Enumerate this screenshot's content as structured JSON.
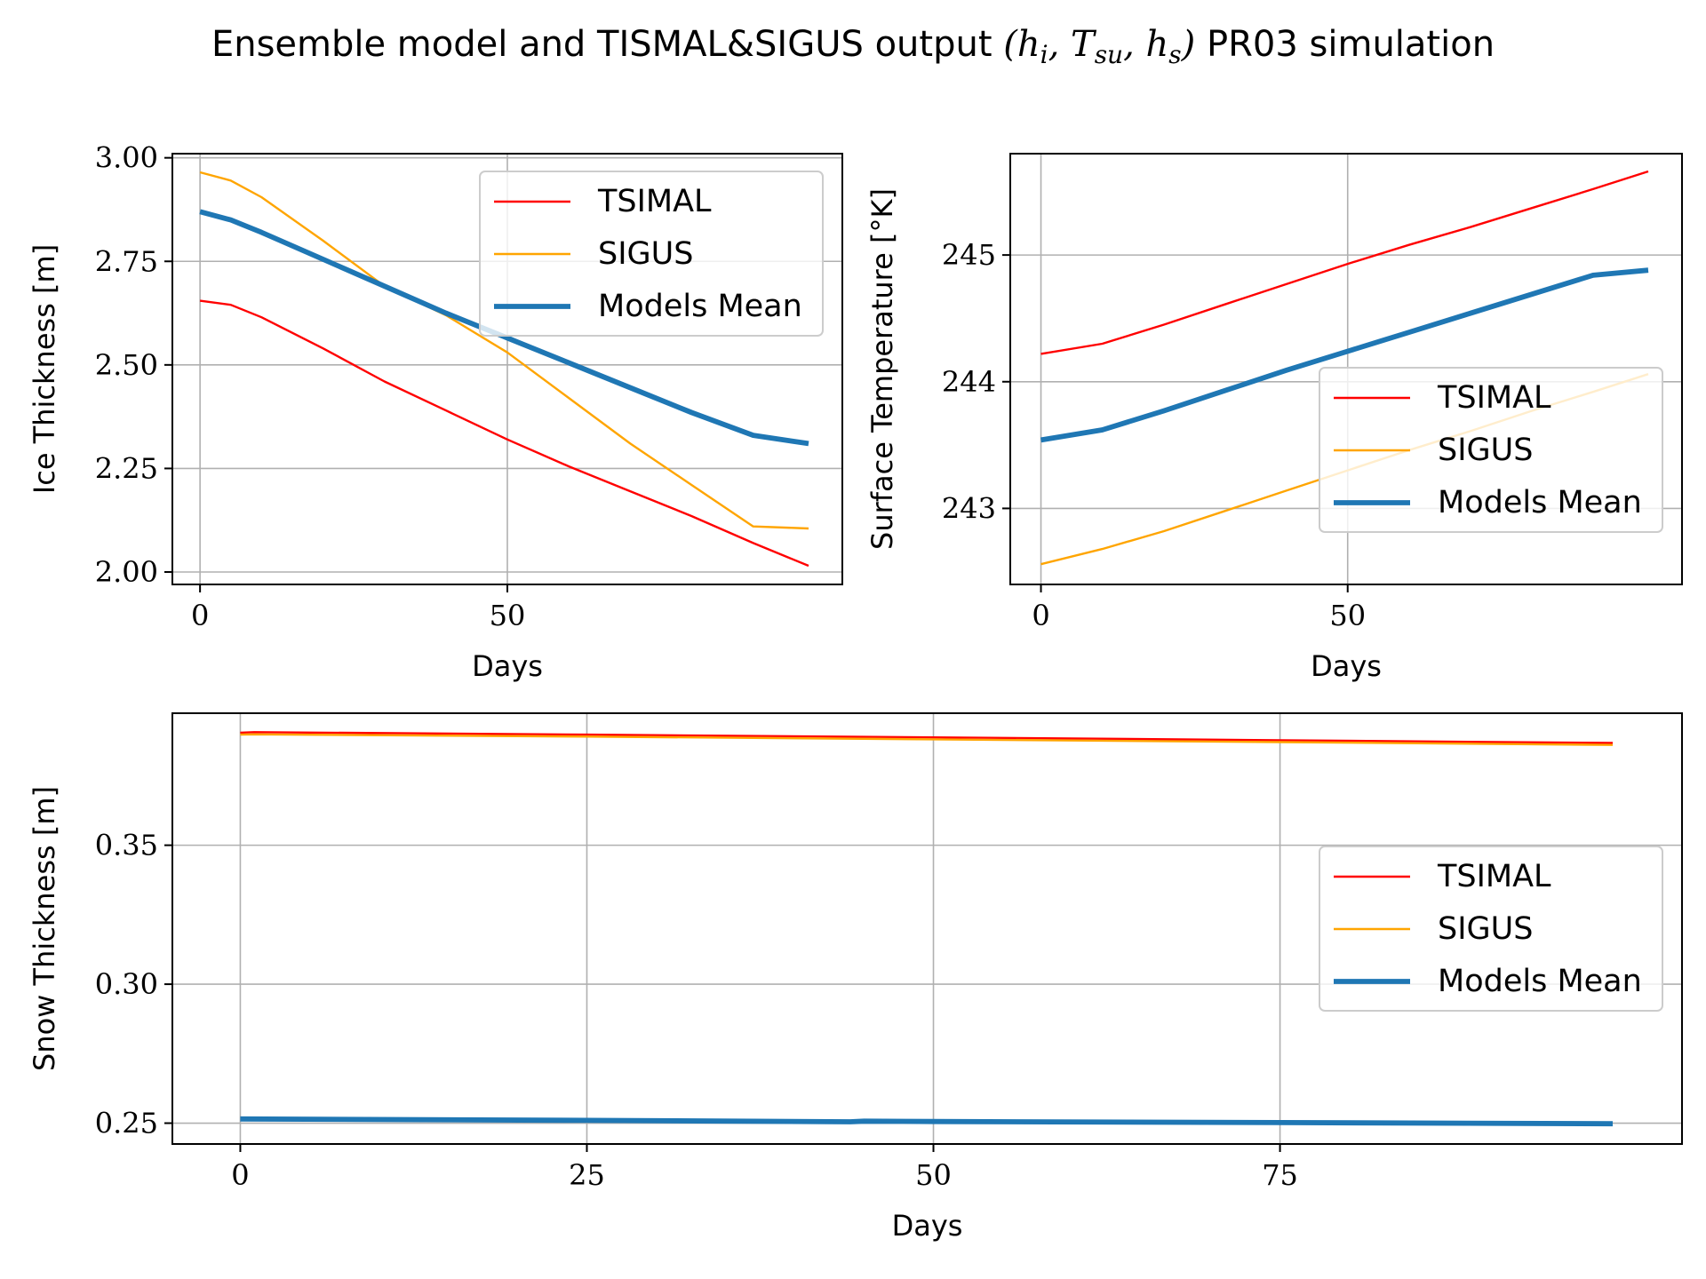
{
  "figure": {
    "title_prefix": "Ensemble model and TISMAL&SIGUS output ",
    "title_math": "(h",
    "title_suffix": " PR03 simulation"
  },
  "colors": {
    "tsimal": "#ff0000",
    "sigus": "#ffa500",
    "mean": "#1f77b4",
    "grid": "#b0b0b0",
    "axes": "#000000"
  },
  "chart_data": [
    {
      "type": "line",
      "xlabel": "Days",
      "ylabel": "Ice Thickness [m]",
      "xlim": [
        -4.5,
        104.5
      ],
      "ylim": [
        1.97,
        3.01
      ],
      "xticks": [
        0,
        50
      ],
      "yticks": [
        2.0,
        2.25,
        2.5,
        2.75,
        3.0
      ],
      "ytick_labels": [
        "2.00",
        "2.25",
        "2.50",
        "2.75",
        "3.00"
      ],
      "grid": true,
      "legend_position": "upper right",
      "series": [
        {
          "name": "TSIMAL",
          "key": "tsimal",
          "x": [
            0,
            5,
            10,
            20,
            30,
            40,
            50,
            60,
            70,
            80,
            90,
            99
          ],
          "y": [
            2.655,
            2.645,
            2.615,
            2.54,
            2.46,
            2.39,
            2.32,
            2.255,
            2.195,
            2.135,
            2.07,
            2.015
          ]
        },
        {
          "name": "SIGUS",
          "key": "sigus",
          "x": [
            0,
            5,
            10,
            20,
            30,
            40,
            50,
            60,
            70,
            80,
            90,
            99
          ],
          "y": [
            2.965,
            2.945,
            2.905,
            2.8,
            2.69,
            2.62,
            2.53,
            2.42,
            2.31,
            2.21,
            2.11,
            2.105
          ]
        },
        {
          "name": "Models Mean",
          "key": "mean",
          "x": [
            0,
            5,
            10,
            20,
            30,
            40,
            50,
            60,
            70,
            80,
            90,
            99
          ],
          "y": [
            2.87,
            2.85,
            2.82,
            2.755,
            2.69,
            2.625,
            2.565,
            2.505,
            2.445,
            2.385,
            2.33,
            2.31
          ]
        }
      ]
    },
    {
      "type": "line",
      "xlabel": "Days",
      "ylabel": "Surface Temperature [°K]",
      "xlim": [
        -5,
        104.5
      ],
      "ylim": [
        242.4,
        245.8
      ],
      "xticks": [
        0,
        50
      ],
      "yticks": [
        243,
        244,
        245
      ],
      "ytick_labels": [
        "243",
        "244",
        "245"
      ],
      "grid": true,
      "legend_position": "lower right",
      "series": [
        {
          "name": "TSIMAL",
          "key": "tsimal",
          "x": [
            0,
            10,
            20,
            30,
            40,
            50,
            60,
            70,
            80,
            90,
            99
          ],
          "y": [
            244.22,
            244.3,
            244.45,
            244.61,
            244.77,
            244.93,
            245.08,
            245.22,
            245.37,
            245.52,
            245.66
          ]
        },
        {
          "name": "SIGUS",
          "key": "sigus",
          "x": [
            0,
            10,
            20,
            30,
            40,
            50,
            60,
            70,
            80,
            90,
            99
          ],
          "y": [
            242.56,
            242.68,
            242.82,
            242.98,
            243.14,
            243.3,
            243.46,
            243.61,
            243.77,
            243.92,
            244.06
          ]
        },
        {
          "name": "Models Mean",
          "key": "mean",
          "x": [
            0,
            10,
            20,
            30,
            40,
            50,
            60,
            70,
            80,
            90,
            99
          ],
          "y": [
            243.54,
            243.62,
            243.77,
            243.93,
            244.09,
            244.24,
            244.39,
            244.54,
            244.69,
            244.84,
            244.88
          ]
        }
      ]
    },
    {
      "type": "line",
      "xlabel": "Days",
      "ylabel": "Snow Thickness [m]",
      "xlim": [
        -4.9,
        104.0
      ],
      "ylim": [
        0.2425,
        0.3975
      ],
      "xticks": [
        0,
        25,
        50,
        75
      ],
      "yticks": [
        0.25,
        0.3,
        0.35
      ],
      "ytick_labels": [
        "0.25",
        "0.30",
        "0.35"
      ],
      "grid": true,
      "legend_position": "center right",
      "series": [
        {
          "name": "TSIMAL",
          "key": "tsimal",
          "x": [
            0,
            1,
            25,
            50,
            75,
            99
          ],
          "y": [
            0.3905,
            0.3907,
            0.3898,
            0.3888,
            0.3878,
            0.3868
          ]
        },
        {
          "name": "SIGUS",
          "key": "sigus",
          "x": [
            0,
            1,
            25,
            50,
            75,
            99
          ],
          "y": [
            0.3898,
            0.3899,
            0.3891,
            0.3881,
            0.3871,
            0.3861
          ]
        },
        {
          "name": "Models Mean",
          "key": "mean",
          "x": [
            0,
            25,
            44,
            45,
            50,
            75,
            99
          ],
          "y": [
            0.2515,
            0.251,
            0.2505,
            0.2507,
            0.2506,
            0.2502,
            0.2498
          ]
        }
      ]
    }
  ]
}
